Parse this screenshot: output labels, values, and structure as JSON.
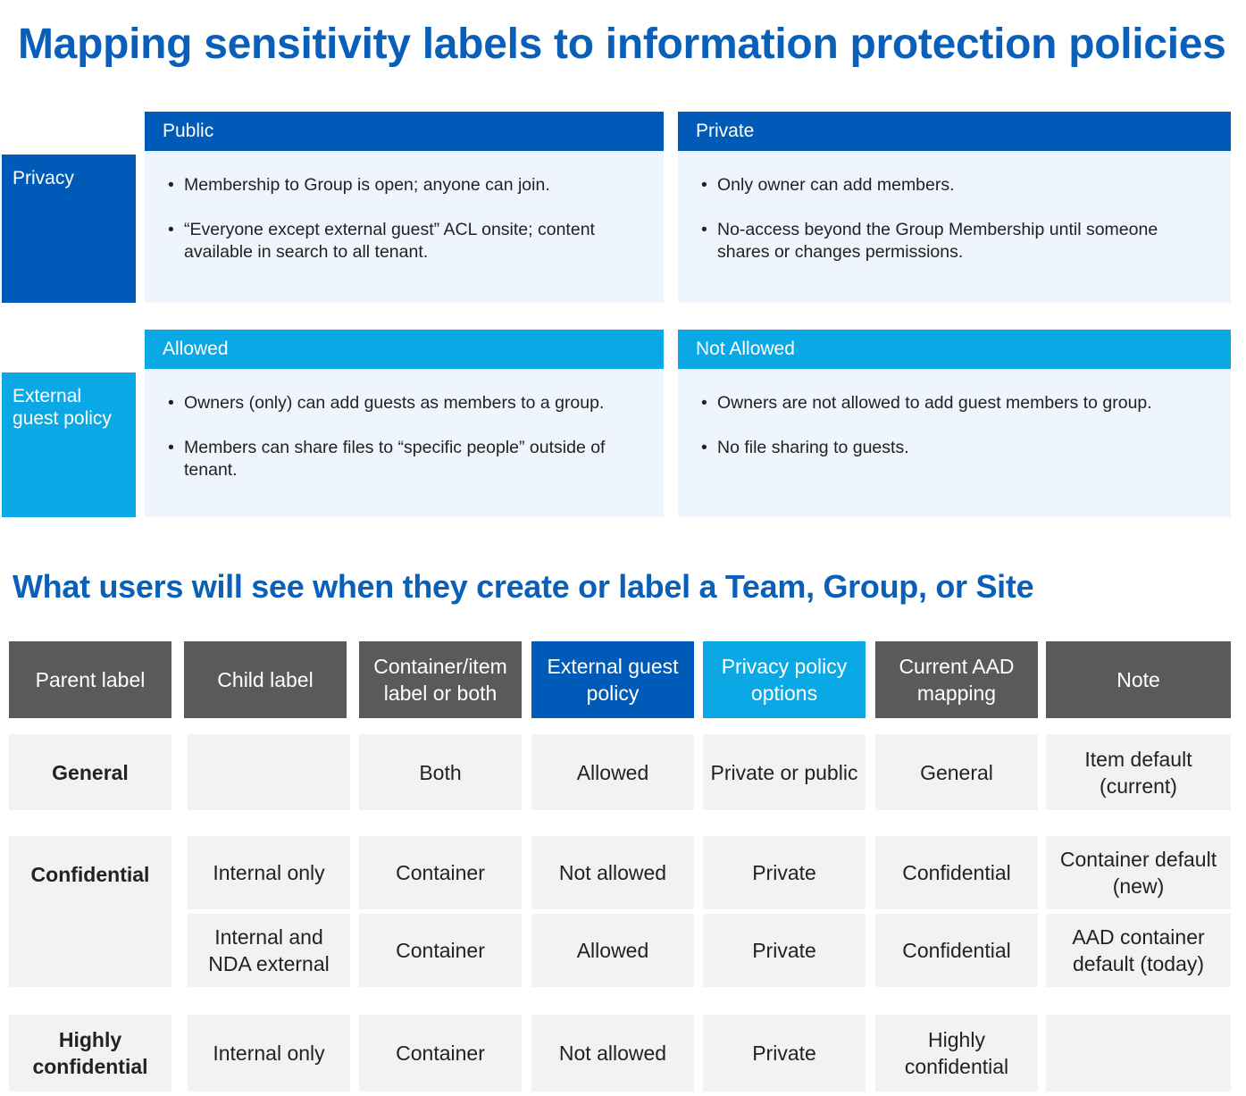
{
  "title": "Mapping sensitivity labels to information protection policies",
  "subtitle": "What users will see when they create or label a Team, Group, or Site",
  "privacy": {
    "label": "Privacy",
    "public": {
      "header": "Public",
      "bullets": [
        "Membership to Group is open; anyone can join.",
        "“Everyone except external guest” ACL onsite; content available in search to all tenant."
      ]
    },
    "private": {
      "header": "Private",
      "bullets": [
        "Only owner can add members.",
        "No-access beyond the Group Membership until someone shares or changes permissions."
      ]
    }
  },
  "guest": {
    "label": "External guest policy",
    "allowed": {
      "header": "Allowed",
      "bullets": [
        "Owners (only) can add guests as members to a group.",
        "Members can share files to “specific people” outside of tenant."
      ]
    },
    "not_allowed": {
      "header": "Not Allowed",
      "bullets": [
        "Owners are not allowed to add guest members to group.",
        "No file sharing to guests."
      ]
    }
  },
  "table": {
    "headers": [
      "Parent label",
      "Child label",
      "Container/item label or both",
      "External guest policy",
      "Privacy policy options",
      "Current AAD mapping",
      "Note"
    ],
    "general": {
      "parent": "General",
      "child": "",
      "scope": "Both",
      "guest": "Allowed",
      "privacy": "Private or public",
      "aad": "General",
      "note": "Item default (current)"
    },
    "confidential": {
      "parent": "Confidential",
      "rows": [
        {
          "child": "Internal only",
          "scope": "Container",
          "guest": "Not allowed",
          "privacy": "Private",
          "aad": "Confidential",
          "note": "Container default (new)"
        },
        {
          "child": "Internal and NDA external",
          "scope": "Container",
          "guest": "Allowed",
          "privacy": "Private",
          "aad": "Confidential",
          "note": "AAD container default (today)"
        }
      ]
    },
    "highly": {
      "parent": "Highly confidential",
      "child": "Internal only",
      "scope": "Container",
      "guest": "Not allowed",
      "privacy": "Private",
      "aad": "Highly confidential",
      "note": ""
    }
  },
  "colors": {
    "dark_blue": "#005bb8",
    "light_blue": "#0aa9e6",
    "header_gray": "#5a5a5a",
    "cell_gray": "#f2f2f2",
    "panel_bg": "#eef5fc",
    "title_blue": "#0a5fb8"
  }
}
